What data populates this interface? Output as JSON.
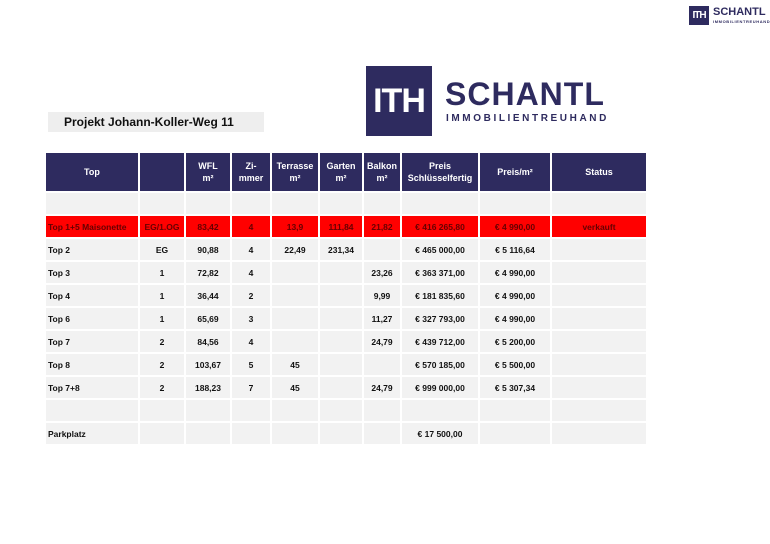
{
  "logo": {
    "mark": "ITH",
    "name": "SCHANTL",
    "tagline": "IMMOBILIENTREUHAND"
  },
  "project_title": "Projekt Johann-Koller-Weg 11",
  "table": {
    "header": [
      [
        "Top"
      ],
      [],
      [
        "WFL",
        "m²"
      ],
      [
        "Zi-",
        "mmer"
      ],
      [
        "Terrasse",
        "m²"
      ],
      [
        "Garten",
        "m²"
      ],
      [
        "Balkon",
        "m²"
      ],
      [
        "Preis",
        "Schlüsselfertig"
      ],
      [
        "Preis/m²"
      ],
      [
        "Status"
      ]
    ],
    "rows": [
      {
        "cells": []
      },
      {
        "highlight": true,
        "cells": [
          "Top 1+5 Maisonette",
          "EG/1.OG",
          "83,42",
          "4",
          "13,9",
          "111,84",
          "21,82",
          "€ 416 265,80",
          "€ 4 990,00",
          "verkauft"
        ]
      },
      {
        "cells": [
          "Top 2",
          "EG",
          "90,88",
          "4",
          "22,49",
          "231,34",
          null,
          "€ 465 000,00",
          "€ 5 116,64",
          null
        ]
      },
      {
        "cells": [
          "Top 3",
          "1",
          "72,82",
          "4",
          null,
          null,
          "23,26",
          "€ 363 371,00",
          "€ 4 990,00",
          null
        ]
      },
      {
        "cells": [
          "Top 4",
          "1",
          "36,44",
          "2",
          null,
          null,
          "9,99",
          "€ 181 835,60",
          "€ 4 990,00",
          null
        ]
      },
      {
        "cells": [
          "Top 6",
          "1",
          "65,69",
          "3",
          null,
          null,
          "11,27",
          "€ 327 793,00",
          "€ 4 990,00",
          null
        ]
      },
      {
        "cells": [
          "Top 7",
          "2",
          "84,56",
          "4",
          null,
          null,
          "24,79",
          "€ 439 712,00",
          "€ 5 200,00",
          null
        ]
      },
      {
        "cells": [
          "Top 8",
          "2",
          "103,67",
          "5",
          "45",
          null,
          null,
          "€ 570 185,00",
          "€ 5 500,00",
          null
        ]
      },
      {
        "cells": [
          "Top 7+8",
          "2",
          "188,23",
          "7",
          "45",
          null,
          "24,79",
          "€ 999 000,00",
          "€ 5 307,34",
          null
        ]
      },
      {
        "cells": []
      },
      {
        "cells": [
          "Parkplatz",
          null,
          null,
          null,
          null,
          null,
          null,
          "€ 17 500,00",
          null,
          null
        ]
      }
    ]
  }
}
